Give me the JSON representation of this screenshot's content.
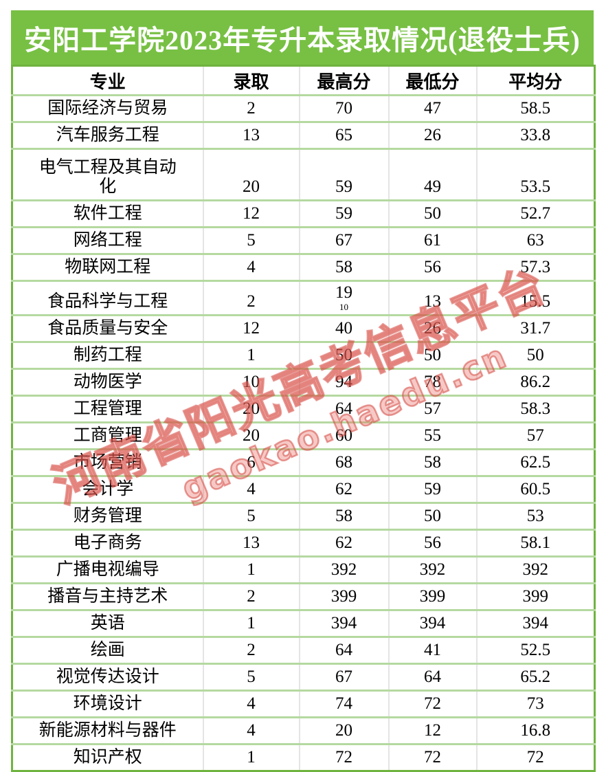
{
  "title_bar": {
    "text": "安阳工学院2023年专升本录取情况(退役士兵)",
    "bg_color": "#77c043",
    "text_color": "#ffffff"
  },
  "table": {
    "headers": [
      "专业",
      "录取",
      "最高分",
      "最低分",
      "平均分"
    ],
    "rows": [
      {
        "major": "国际经济与贸易",
        "admitted": "2",
        "max": "70",
        "min": "47",
        "avg": "58.5"
      },
      {
        "major": "汽车服务工程",
        "admitted": "13",
        "max": "65",
        "min": "26",
        "avg": "33.8"
      },
      {
        "major": "电气工程及其自动\n化",
        "admitted": "20",
        "max": "59",
        "min": "49",
        "avg": "53.5",
        "tall": true
      },
      {
        "major": "软件工程",
        "admitted": "12",
        "max": "59",
        "min": "50",
        "avg": "52.7"
      },
      {
        "major": "网络工程",
        "admitted": "5",
        "max": "67",
        "min": "61",
        "avg": "63"
      },
      {
        "major": "物联网工程",
        "admitted": "4",
        "max": "58",
        "min": "56",
        "avg": "57.3"
      },
      {
        "major": "食品科学与工程",
        "admitted": "2",
        "max": "19",
        "max_sub": "10",
        "min": "13",
        "avg": "15.5",
        "medium": true
      },
      {
        "major": "食品质量与安全",
        "admitted": "12",
        "max": "40",
        "min": "26",
        "avg": "31.7"
      },
      {
        "major": "制药工程",
        "admitted": "1",
        "max": "50",
        "min": "50",
        "avg": "50"
      },
      {
        "major": "动物医学",
        "admitted": "10",
        "max": "94",
        "min": "78",
        "avg": "86.2"
      },
      {
        "major": "工程管理",
        "admitted": "20",
        "max": "64",
        "min": "57",
        "avg": "58.3"
      },
      {
        "major": "工商管理",
        "admitted": "20",
        "max": "60",
        "min": "55",
        "avg": "57"
      },
      {
        "major": "市场营销",
        "admitted": "6",
        "max": "68",
        "min": "58",
        "avg": "62.5"
      },
      {
        "major": "会计学",
        "admitted": "4",
        "max": "62",
        "min": "59",
        "avg": "60.5"
      },
      {
        "major": "财务管理",
        "admitted": "5",
        "max": "58",
        "min": "50",
        "avg": "53"
      },
      {
        "major": "电子商务",
        "admitted": "13",
        "max": "62",
        "min": "56",
        "avg": "58.1"
      },
      {
        "major": "广播电视编导",
        "admitted": "1",
        "max": "392",
        "min": "392",
        "avg": "392"
      },
      {
        "major": "播音与主持艺术",
        "admitted": "2",
        "max": "399",
        "min": "399",
        "avg": "399"
      },
      {
        "major": "英语",
        "admitted": "1",
        "max": "394",
        "min": "394",
        "avg": "394"
      },
      {
        "major": "绘画",
        "admitted": "2",
        "max": "64",
        "min": "41",
        "avg": "52.5"
      },
      {
        "major": "视觉传达设计",
        "admitted": "5",
        "max": "67",
        "min": "64",
        "avg": "65.2"
      },
      {
        "major": "环境设计",
        "admitted": "4",
        "max": "74",
        "min": "72",
        "avg": "73"
      },
      {
        "major": "新能源材料与器件",
        "admitted": "4",
        "max": "20",
        "min": "12",
        "avg": "16.8"
      },
      {
        "major": "知识产权",
        "admitted": "1",
        "max": "72",
        "min": "72",
        "avg": "72"
      }
    ]
  },
  "watermark": {
    "line1": "河南省阳光高考信息平台",
    "line2": "gaokao.haedu.cn"
  },
  "colors": {
    "title_green": "#77c043",
    "outer_border_green": "#6fb340",
    "row_line_green": "#b5d9a0",
    "column_line_gray": "#e4e4e4",
    "watermark_red": "#d54942"
  }
}
